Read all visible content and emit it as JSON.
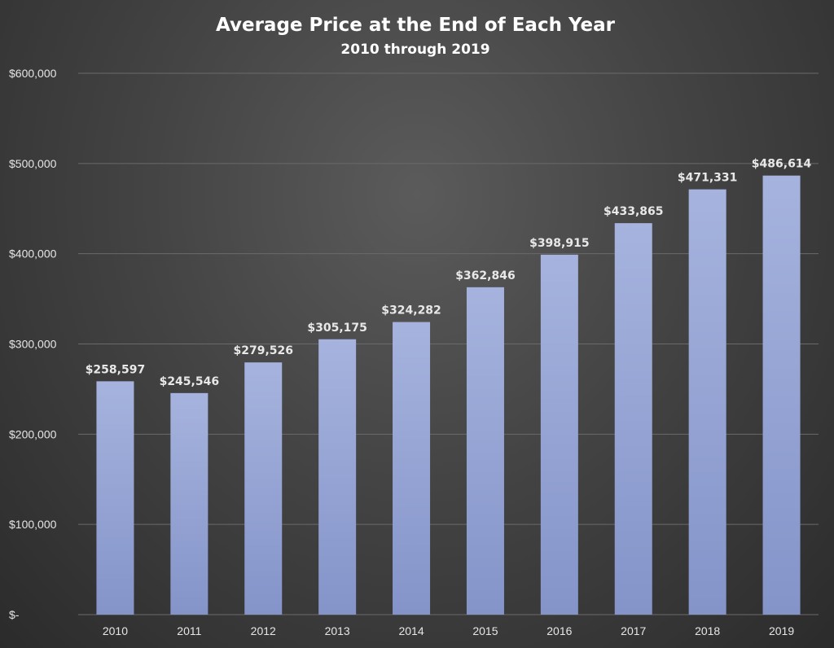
{
  "chart_data": {
    "type": "bar",
    "title": "Average Price at the End of Each Year",
    "subtitle": "2010 through 2019",
    "categories": [
      "2010",
      "2011",
      "2012",
      "2013",
      "2014",
      "2015",
      "2016",
      "2017",
      "2018",
      "2019"
    ],
    "values": [
      258597,
      245546,
      279526,
      305175,
      324282,
      362846,
      398915,
      433865,
      471331,
      486614
    ],
    "data_labels": [
      "$258,597",
      "$245,546",
      "$279,526",
      "$305,175",
      "$324,282",
      "$362,846",
      "$398,915",
      "$433,865",
      "$471,331",
      "$486,614"
    ],
    "ylim": [
      0,
      600000
    ],
    "y_ticks": [
      0,
      100000,
      200000,
      300000,
      400000,
      500000,
      600000
    ],
    "y_tick_labels": [
      "$-",
      "$100,000",
      "$200,000",
      "$300,000",
      "$400,000",
      "$500,000",
      "$600,000"
    ],
    "xlabel": "",
    "ylabel": "",
    "grid": true,
    "legend": "none",
    "colors": {
      "bar_top": "#a6b3de",
      "bar_bottom": "#8494c9",
      "background": "#454545",
      "text": "#e6e6e6",
      "grid": "#6a6a6a"
    }
  }
}
